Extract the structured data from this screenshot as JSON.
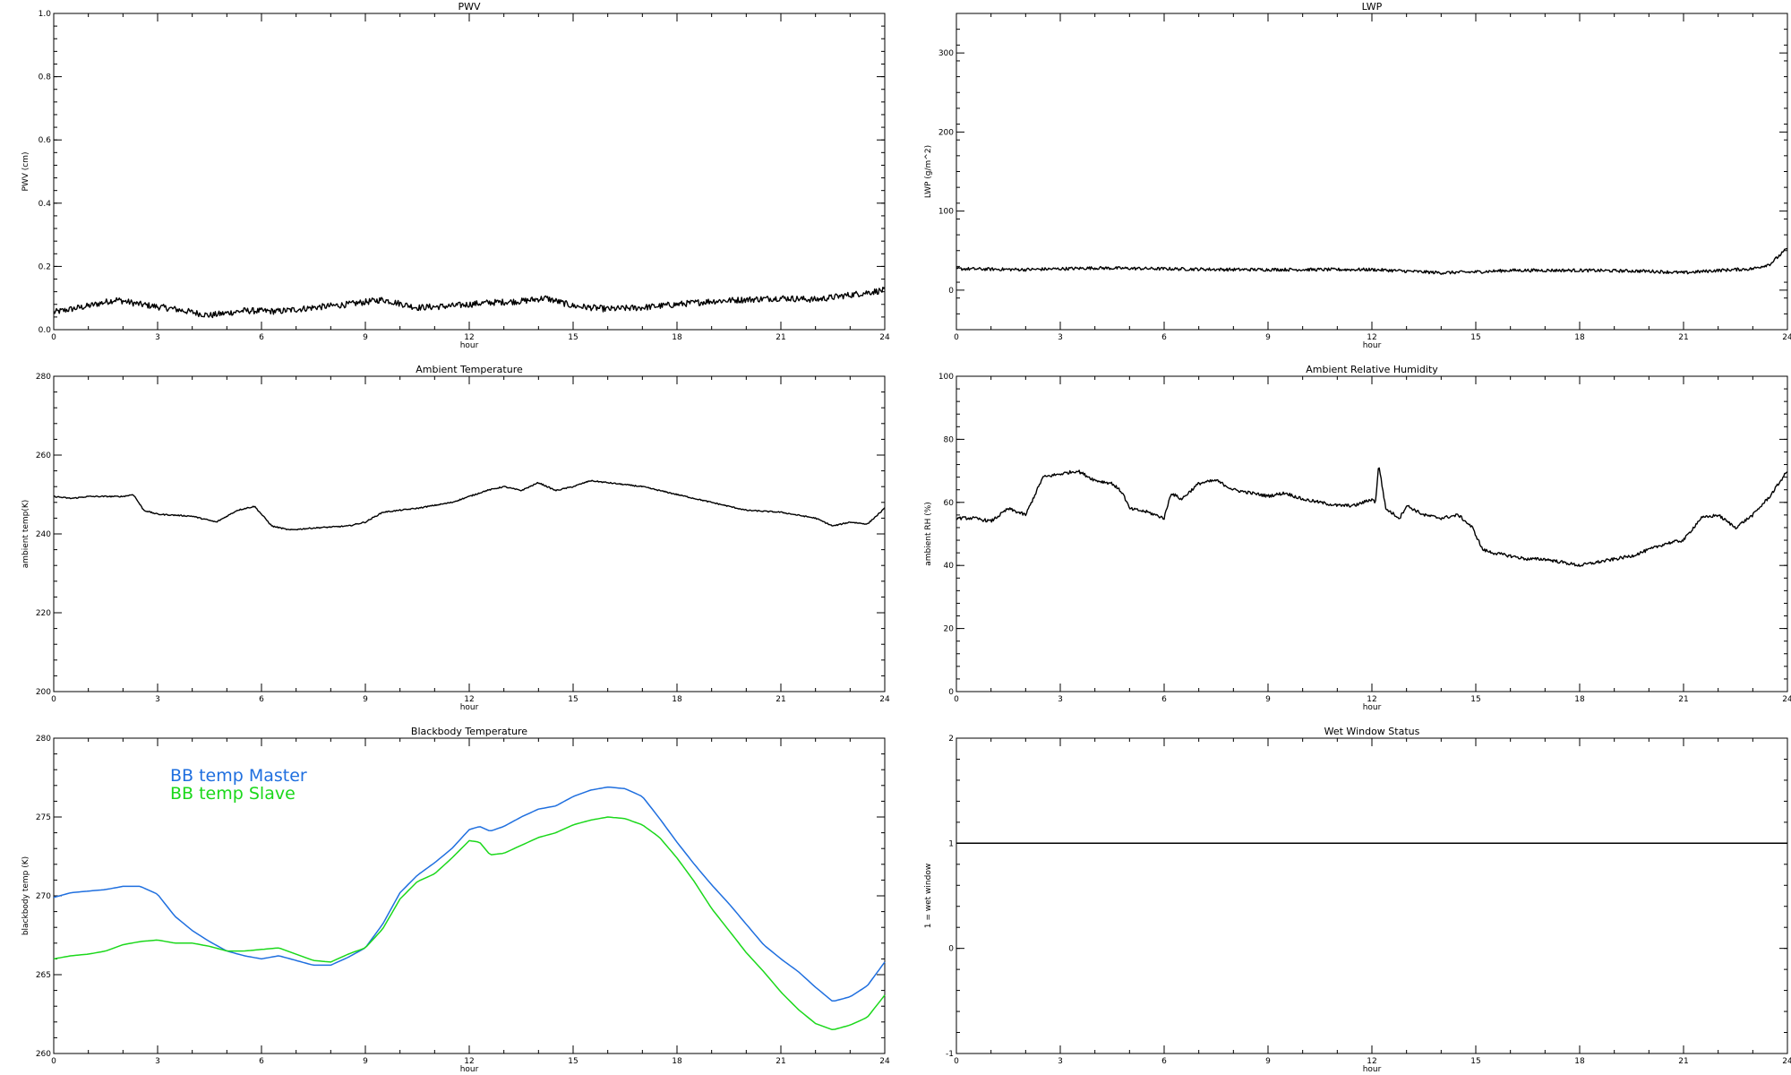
{
  "chart_data": [
    {
      "id": "pwv",
      "type": "line",
      "title": "PWV",
      "xlabel": "hour",
      "ylabel": "PWV (cm)",
      "xlim": [
        0,
        24
      ],
      "ylim": [
        0.0,
        1.0
      ],
      "xticks": [
        "0",
        "3",
        "6",
        "9",
        "12",
        "15",
        "18",
        "21",
        "24"
      ],
      "yticks": [
        "0.0",
        "0.2",
        "0.4",
        "0.6",
        "0.8",
        "1.0"
      ],
      "series": [
        {
          "color": "#000000",
          "noise": 0.01,
          "x": [
            0,
            1,
            1.8,
            2.5,
            3.5,
            4.5,
            5.5,
            6.5,
            7.5,
            8.5,
            9.5,
            10.5,
            11.5,
            12.5,
            13.5,
            14.2,
            15,
            16,
            17,
            18,
            19,
            20,
            21,
            22,
            23,
            24
          ],
          "y": [
            0.055,
            0.075,
            0.095,
            0.08,
            0.065,
            0.045,
            0.06,
            0.058,
            0.07,
            0.08,
            0.095,
            0.07,
            0.075,
            0.085,
            0.09,
            0.1,
            0.075,
            0.065,
            0.07,
            0.08,
            0.09,
            0.095,
            0.1,
            0.095,
            0.11,
            0.125
          ]
        }
      ]
    },
    {
      "id": "lwp",
      "type": "line",
      "title": "LWP",
      "xlabel": "hour",
      "ylabel": "LWP (g/m^2)",
      "xlim": [
        0,
        24
      ],
      "ylim": [
        -50,
        350
      ],
      "xticks": [
        "0",
        "3",
        "6",
        "9",
        "12",
        "15",
        "18",
        "21",
        "24"
      ],
      "yticks": [
        "0",
        "100",
        "200",
        "300"
      ],
      "series": [
        {
          "color": "#000000",
          "noise": 2,
          "x": [
            0,
            2,
            4,
            6,
            8,
            10,
            12,
            13,
            14,
            15,
            16,
            18,
            20,
            21,
            22,
            23,
            23.5,
            24
          ],
          "y": [
            27,
            26,
            28,
            27,
            26,
            26,
            26,
            24,
            22,
            23,
            25,
            25,
            24,
            22,
            25,
            27,
            33,
            53
          ]
        }
      ]
    },
    {
      "id": "ambient-temp",
      "type": "line",
      "title": "Ambient Temperature",
      "xlabel": "hour",
      "ylabel": "ambient temp(K)",
      "xlim": [
        0,
        24
      ],
      "ylim": [
        200,
        280
      ],
      "xticks": [
        "0",
        "3",
        "6",
        "9",
        "12",
        "15",
        "18",
        "21",
        "24"
      ],
      "yticks": [
        "200",
        "220",
        "240",
        "260",
        "280"
      ],
      "series": [
        {
          "color": "#000000",
          "noise": 0.15,
          "x": [
            0,
            0.5,
            1,
            2,
            2.3,
            2.6,
            3,
            4,
            4.7,
            5.3,
            5.8,
            6.3,
            6.8,
            7.5,
            8.5,
            9,
            9.5,
            10.5,
            11.5,
            12,
            12.5,
            13,
            13.5,
            14,
            14.5,
            15,
            15.5,
            16,
            17,
            18,
            19,
            20,
            21,
            22,
            22.5,
            23,
            23.5,
            24
          ],
          "y": [
            249.5,
            249,
            249.5,
            249.5,
            250,
            246,
            245,
            244.5,
            243,
            246,
            247,
            242,
            241,
            241.5,
            242,
            243,
            245.5,
            246.5,
            248,
            249.5,
            251,
            252,
            251,
            253,
            251,
            252,
            253.5,
            253,
            252,
            250,
            248,
            246,
            245.5,
            244,
            242,
            243,
            242.5,
            246.5
          ]
        }
      ]
    },
    {
      "id": "ambient-rh",
      "type": "line",
      "title": "Ambient Relative Humidity",
      "xlabel": "hour",
      "ylabel": "ambient RH (%)",
      "xlim": [
        0,
        24
      ],
      "ylim": [
        0,
        100
      ],
      "xticks": [
        "0",
        "3",
        "6",
        "9",
        "12",
        "15",
        "18",
        "21",
        "24"
      ],
      "yticks": [
        "0",
        "20",
        "40",
        "60",
        "80",
        "100"
      ],
      "series": [
        {
          "color": "#000000",
          "noise": 0.5,
          "x": [
            0,
            0.5,
            1,
            1.5,
            2,
            2.5,
            3,
            3.5,
            4,
            4.5,
            4.8,
            5,
            5.5,
            6,
            6.2,
            6.5,
            7,
            7.5,
            8,
            8.5,
            9,
            9.5,
            10,
            10.5,
            11,
            11.5,
            12,
            12.1,
            12.2,
            12.4,
            12.8,
            13,
            13.5,
            14,
            14.5,
            14.9,
            15.2,
            15.5,
            16,
            16.5,
            17,
            17.5,
            18,
            18.5,
            19,
            19.5,
            20,
            20.5,
            21,
            21.5,
            22,
            22.5,
            23,
            23.5,
            24
          ],
          "y": [
            55,
            55,
            54,
            58,
            56,
            68,
            69,
            70,
            67,
            66,
            63,
            58,
            57,
            55,
            63,
            61,
            66,
            67,
            64,
            63,
            62,
            63,
            61,
            60,
            59,
            59,
            61,
            60,
            72,
            58,
            55,
            59,
            56,
            55,
            56,
            52,
            45,
            44,
            43,
            42,
            42,
            41,
            40,
            41,
            42,
            43,
            45,
            47,
            48,
            55,
            56,
            52,
            56,
            62,
            70
          ]
        }
      ]
    },
    {
      "id": "blackbody-temp",
      "type": "line",
      "title": "Blackbody Temperature",
      "xlabel": "hour",
      "ylabel": "blackbody temp (K)",
      "xlim": [
        0,
        24
      ],
      "ylim": [
        260,
        280
      ],
      "xticks": [
        "0",
        "3",
        "6",
        "9",
        "12",
        "15",
        "18",
        "21",
        "24"
      ],
      "yticks": [
        "260",
        "265",
        "270",
        "275",
        "280"
      ],
      "legend_placement": "top-left",
      "series": [
        {
          "name": "BB temp Master",
          "color": "#1f6fdf",
          "noise": 0,
          "x": [
            0,
            0.5,
            1,
            1.5,
            2,
            2.5,
            3,
            3.5,
            4,
            4.5,
            5,
            5.5,
            6,
            6.5,
            7,
            7.5,
            8,
            8.5,
            9,
            9.5,
            10,
            10.5,
            11,
            11.5,
            12,
            12.3,
            12.6,
            13,
            13.5,
            14,
            14.5,
            15,
            15.5,
            16,
            16.5,
            17,
            17.5,
            18,
            18.5,
            19,
            19.5,
            20,
            20.5,
            21,
            21.5,
            22,
            22.5,
            23,
            23.5,
            24
          ],
          "y": [
            269.9,
            270.2,
            270.3,
            270.4,
            270.6,
            270.6,
            270.1,
            268.7,
            267.8,
            267.1,
            266.5,
            266.2,
            266.0,
            266.2,
            265.9,
            265.6,
            265.6,
            266.1,
            266.7,
            268.2,
            270.2,
            271.3,
            272.1,
            273.0,
            274.2,
            274.4,
            274.1,
            274.4,
            275.0,
            275.5,
            275.7,
            276.3,
            276.7,
            276.9,
            276.8,
            276.3,
            274.9,
            273.4,
            272.0,
            270.7,
            269.5,
            268.2,
            266.9,
            266.0,
            265.2,
            264.2,
            263.3,
            263.6,
            264.3,
            265.8
          ]
        },
        {
          "name": "BB temp Slave",
          "color": "#1bd81b",
          "noise": 0,
          "x": [
            0,
            0.5,
            1,
            1.5,
            2,
            2.5,
            3,
            3.5,
            4,
            4.5,
            5,
            5.5,
            6,
            6.5,
            7,
            7.5,
            8,
            8.5,
            9,
            9.5,
            10,
            10.5,
            11,
            11.5,
            12,
            12.3,
            12.6,
            13,
            13.5,
            14,
            14.5,
            15,
            15.5,
            16,
            16.5,
            17,
            17.5,
            18,
            18.5,
            19,
            19.5,
            20,
            20.5,
            21,
            21.5,
            22,
            22.5,
            23,
            23.5,
            24
          ],
          "y": [
            266.0,
            266.2,
            266.3,
            266.5,
            266.9,
            267.1,
            267.2,
            267.0,
            267.0,
            266.8,
            266.5,
            266.5,
            266.6,
            266.7,
            266.3,
            265.9,
            265.8,
            266.3,
            266.7,
            267.9,
            269.8,
            270.9,
            271.4,
            272.4,
            273.5,
            273.4,
            272.6,
            272.7,
            273.2,
            273.7,
            274.0,
            274.5,
            274.8,
            275.0,
            274.9,
            274.5,
            273.7,
            272.4,
            270.9,
            269.2,
            267.8,
            266.4,
            265.2,
            263.9,
            262.8,
            261.9,
            261.5,
            261.8,
            262.3,
            263.7
          ]
        }
      ]
    },
    {
      "id": "wet-window",
      "type": "line",
      "title": "Wet Window Status",
      "xlabel": "hour",
      "ylabel": "1 = wet window",
      "xlim": [
        0,
        24
      ],
      "ylim": [
        -1,
        2
      ],
      "xticks": [
        "0",
        "3",
        "6",
        "9",
        "12",
        "15",
        "18",
        "21",
        "24"
      ],
      "yticks": [
        "-1",
        "0",
        "1",
        "2"
      ],
      "series": [
        {
          "color": "#000000",
          "noise": 0,
          "x": [
            0,
            24
          ],
          "y": [
            1,
            1
          ]
        }
      ]
    }
  ]
}
